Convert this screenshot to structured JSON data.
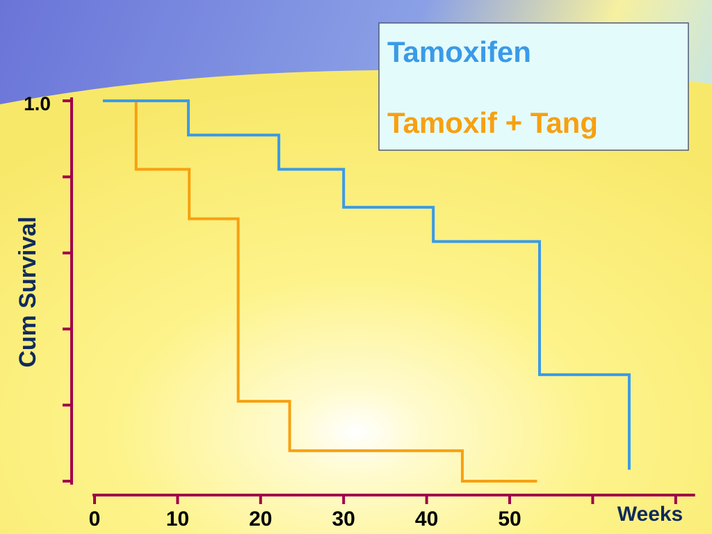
{
  "chart_data": {
    "type": "step",
    "series": [
      {
        "name": "Tamoxifen",
        "color": "#3a9ae8",
        "x": [
          1,
          11.3,
          22.2,
          30,
          40.8,
          53.6,
          64.4
        ],
        "values": [
          1.0,
          0.91,
          0.82,
          0.72,
          0.63,
          0.28,
          0.03
        ]
      },
      {
        "name": "Tamoxif + Tang",
        "color": "#f7a010",
        "x": [
          5,
          5,
          11.4,
          17.3,
          23.5,
          44.3,
          53.3
        ],
        "values": [
          1.0,
          0.82,
          0.69,
          0.21,
          0.08,
          0.0,
          0.0
        ]
      }
    ],
    "y_label": "Cum Survival",
    "x_label": "Weeks",
    "xlim": [
      0,
      72
    ],
    "ylim": [
      0,
      1
    ],
    "xticks": [
      0,
      10,
      20,
      30,
      40,
      50
    ],
    "yticks": [
      {
        "value": 1,
        "label": "1.0"
      }
    ],
    "xminor": [
      60,
      70
    ],
    "yminor": [
      0,
      0.2,
      0.4,
      0.6,
      0.8
    ],
    "axis_color": "#a0004a",
    "legend": "top-right"
  }
}
